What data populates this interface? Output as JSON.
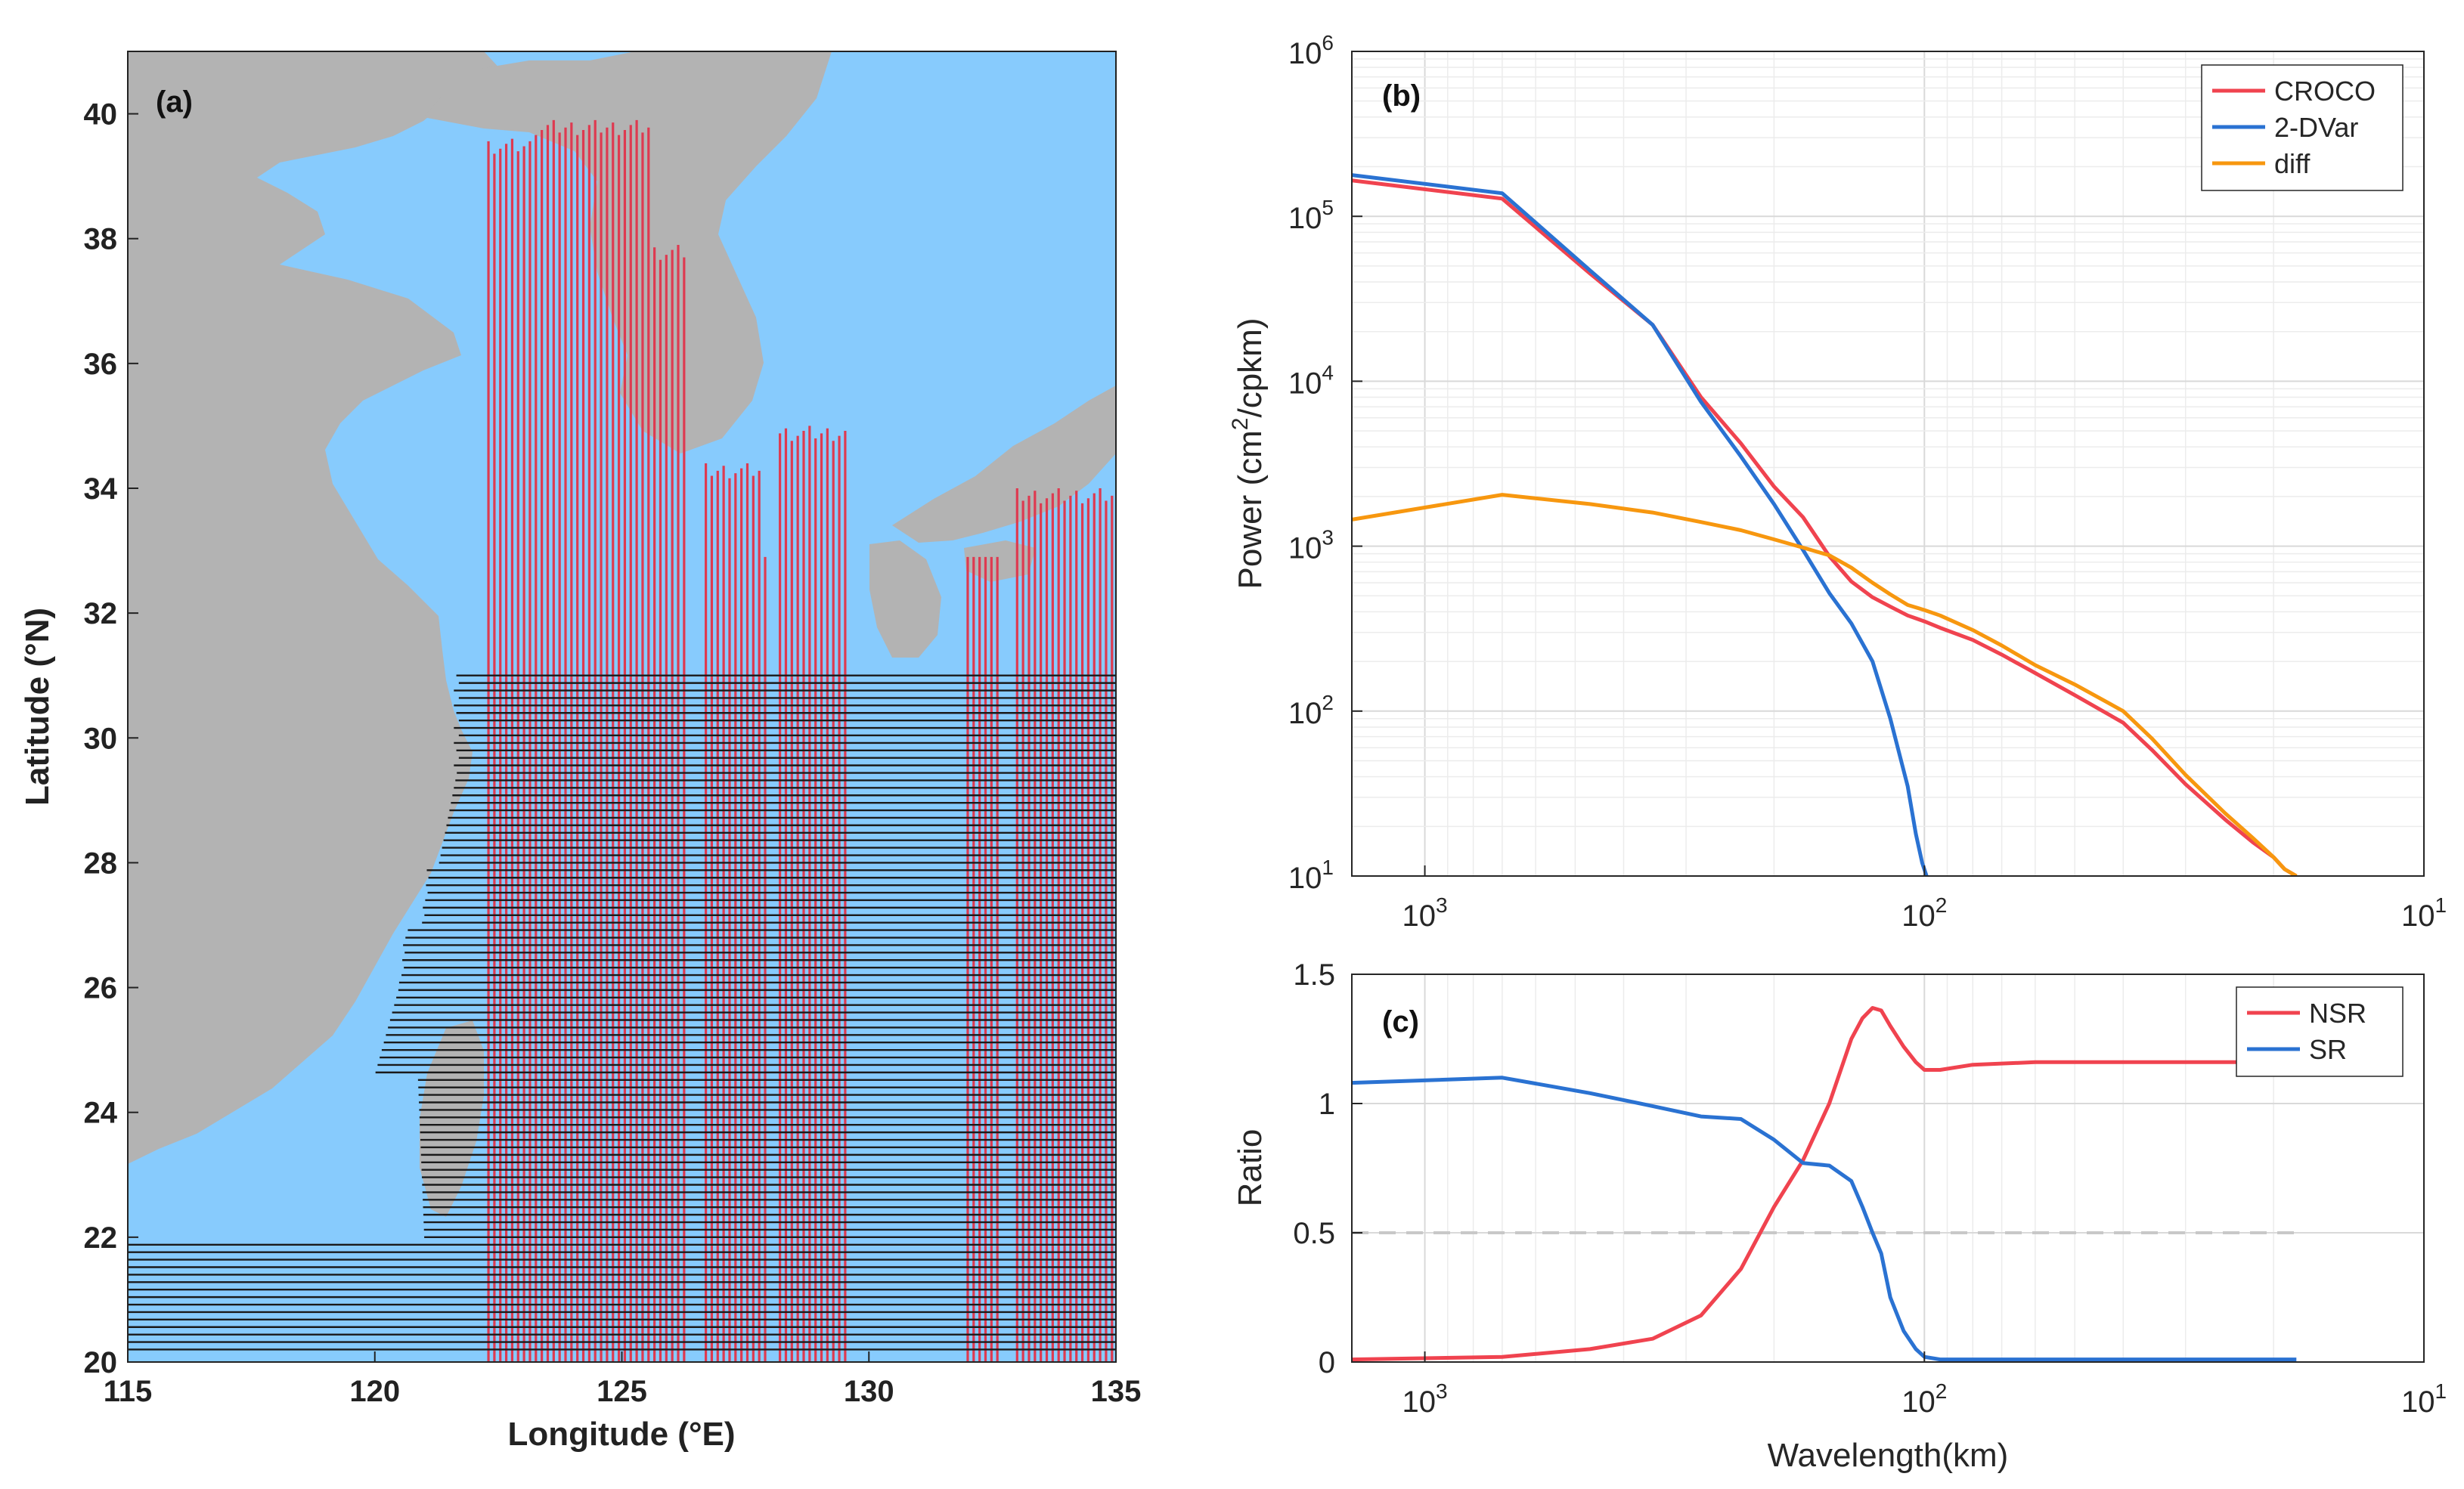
{
  "chart_data": [
    {
      "panel": "(a)",
      "type": "map",
      "xlabel": "Longitude (°E)",
      "ylabel": "Latitude (°N)",
      "xlim": [
        115,
        135
      ],
      "ylim": [
        20,
        41
      ],
      "xticks": [
        "115",
        "120",
        "125",
        "130",
        "135"
      ],
      "yticks": [
        "20",
        "22",
        "24",
        "26",
        "28",
        "30",
        "32",
        "34",
        "36",
        "38",
        "40"
      ],
      "colors": {
        "ocean": "#87cbfd",
        "land": "#b3b3b3",
        "vertical_tracks": "#de3a50",
        "horizontal_tracks": "#1a1a1a"
      },
      "vertical_tracks": {
        "lon_ranges": [
          [
            122.3,
            126.3
          ],
          [
            126.7,
            127.9
          ],
          [
            128.2,
            129.6
          ],
          [
            132.0,
            132.7
          ],
          [
            133.0,
            135.0
          ]
        ],
        "lon_step": 0.12,
        "lat_range": [
          20,
          32.9
        ],
        "tall_tops": [
          {
            "lon_range": [
              123.2,
              125.6
            ],
            "top": 39.9
          },
          {
            "lon_range": [
              122.3,
              123.2
            ],
            "top": 39.6
          },
          {
            "lon_range": [
              125.6,
              126.3
            ],
            "top": 37.9
          },
          {
            "lon_range": [
              126.7,
              127.9
            ],
            "top": 34.4
          },
          {
            "lon_range": [
              128.2,
              129.6
            ],
            "top": 35.0
          },
          {
            "lon_range": [
              133.0,
              135.0
            ],
            "top": 34.0
          }
        ]
      },
      "horizontal_tracks": {
        "lat_range": [
          20.2,
          31.1
        ],
        "lat_step": 0.12,
        "lon_end": 135
      }
    },
    {
      "panel": "(b)",
      "type": "line",
      "x_scale": "log",
      "x_reversed": true,
      "y_scale": "log",
      "xlim": [
        1400,
        10
      ],
      "ylim": [
        10,
        1000000
      ],
      "ylabel": "Power (cm²/cpkm)",
      "xlabel": "",
      "xticks": [
        {
          "value": 1000,
          "base": "10",
          "exp": "3"
        },
        {
          "value": 100,
          "base": "10",
          "exp": "2"
        },
        {
          "value": 10,
          "base": "10",
          "exp": "1"
        }
      ],
      "yticks": [
        {
          "value": 10,
          "base": "10",
          "exp": "1"
        },
        {
          "value": 100,
          "base": "10",
          "exp": "2"
        },
        {
          "value": 1000,
          "base": "10",
          "exp": "3"
        },
        {
          "value": 10000,
          "base": "10",
          "exp": "4"
        },
        {
          "value": 100000,
          "base": "10",
          "exp": "5"
        },
        {
          "value": 1000000,
          "base": "10",
          "exp": "6"
        }
      ],
      "grid": true,
      "legend": "top-right",
      "series": [
        {
          "name": "CROCO",
          "color": "#f0434f",
          "x": [
            1400,
            700,
            467,
            350,
            280,
            233,
            200,
            175,
            155,
            140,
            127,
            117,
            108,
            100,
            93,
            80,
            70,
            60,
            50,
            40,
            35,
            30,
            25,
            22,
            20,
            19,
            18
          ],
          "y": [
            165000,
            128000,
            45000,
            22000,
            8000,
            4200,
            2300,
            1500,
            870,
            610,
            490,
            430,
            380,
            350,
            320,
            270,
            220,
            170,
            125,
            85,
            58,
            36,
            22,
            16,
            13,
            11,
            10
          ]
        },
        {
          "name": "2-DVar",
          "color": "#2a72d2",
          "x": [
            1400,
            700,
            467,
            350,
            280,
            233,
            200,
            175,
            155,
            140,
            127,
            117,
            108,
            104,
            101,
            99
          ],
          "y": [
            178000,
            138000,
            47000,
            22000,
            7500,
            3500,
            1800,
            950,
            520,
            340,
            200,
            90,
            35,
            18,
            12,
            10
          ]
        },
        {
          "name": "diff",
          "color": "#f7970f",
          "x": [
            1400,
            700,
            467,
            350,
            280,
            233,
            200,
            175,
            155,
            140,
            127,
            117,
            108,
            100,
            93,
            80,
            70,
            60,
            50,
            40,
            35,
            30,
            25,
            22,
            20,
            19,
            18
          ],
          "y": [
            1450,
            2050,
            1800,
            1600,
            1400,
            1250,
            1100,
            980,
            880,
            740,
            600,
            510,
            440,
            410,
            380,
            310,
            250,
            190,
            145,
            100,
            68,
            41,
            24,
            17,
            13,
            11,
            10
          ]
        }
      ]
    },
    {
      "panel": "(c)",
      "type": "line",
      "x_scale": "log",
      "x_reversed": true,
      "xlim": [
        1400,
        10
      ],
      "ylim": [
        0,
        1.5
      ],
      "xlabel": "Wavelength(km)",
      "ylabel": "Ratio",
      "xticks": [
        {
          "value": 1000,
          "base": "10",
          "exp": "3"
        },
        {
          "value": 100,
          "base": "10",
          "exp": "2"
        },
        {
          "value": 10,
          "base": "10",
          "exp": "1"
        }
      ],
      "yticks": [
        "0",
        "0.5",
        "1",
        "1.5"
      ],
      "reference_line": {
        "y": 0.5,
        "style": "dashed",
        "color": "#c8c8c8"
      },
      "grid": true,
      "legend": "top-right",
      "series": [
        {
          "name": "NSR",
          "color": "#f0434f",
          "x": [
            1400,
            700,
            467,
            350,
            280,
            233,
            200,
            175,
            155,
            140,
            133,
            127,
            122,
            117,
            110,
            104,
            100,
            93,
            80,
            60,
            40,
            25,
            18
          ],
          "y": [
            0.01,
            0.02,
            0.05,
            0.09,
            0.18,
            0.36,
            0.6,
            0.78,
            1.0,
            1.25,
            1.33,
            1.37,
            1.36,
            1.3,
            1.22,
            1.16,
            1.13,
            1.13,
            1.15,
            1.16,
            1.16,
            1.16,
            1.16
          ]
        },
        {
          "name": "SR",
          "color": "#2a72d2",
          "x": [
            1400,
            700,
            467,
            350,
            280,
            233,
            200,
            175,
            155,
            140,
            133,
            127,
            122,
            117,
            110,
            104,
            100,
            93,
            80,
            60,
            40,
            25,
            18
          ],
          "y": [
            1.08,
            1.1,
            1.04,
            0.99,
            0.95,
            0.94,
            0.86,
            0.77,
            0.76,
            0.7,
            0.6,
            0.5,
            0.42,
            0.25,
            0.12,
            0.05,
            0.02,
            0.01,
            0.01,
            0.01,
            0.01,
            0.01,
            0.01
          ]
        }
      ]
    }
  ]
}
